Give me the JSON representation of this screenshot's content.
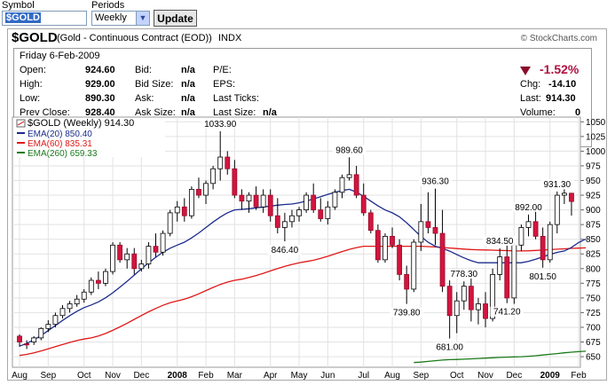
{
  "form": {
    "symbol_label": "Symbol",
    "symbol_value": "$GOLD",
    "periods_label": "Periods",
    "periods_value": "Weekly",
    "update_label": "Update"
  },
  "header": {
    "title": "$GOLD",
    "subtitle": "(Gold - Continuous Contract (EOD))",
    "exchange": "INDX",
    "brand": "© StockCharts.com"
  },
  "info": {
    "date": "Friday  6-Feb-2009",
    "open_label": "Open:",
    "open": "924.60",
    "high_label": "High:",
    "high": "929.00",
    "low_label": "Low:",
    "low": "890.30",
    "prevclose_label": "Prev Close:",
    "prevclose": "928.40",
    "bid_label": "Bid:",
    "bid": "n/a",
    "bidsize_label": "Bid Size:",
    "bidsize": "n/a",
    "ask_label": "Ask:",
    "ask": "n/a",
    "asksize_label": "Ask Size:",
    "asksize": "n/a",
    "pe_label": "P/E:",
    "eps_label": "EPS:",
    "lastticks_label": "Last Ticks:",
    "lastsize_label": "Last Size:",
    "lastsize": "n/a",
    "pct_change": "-1.52%",
    "chg_label": "Chg:",
    "chg": "-14.10",
    "last_label": "Last:",
    "last": "914.30",
    "volume_label": "Volume:",
    "volume": "0"
  },
  "chart_data": {
    "type": "candlestick",
    "title": "$GOLD (Weekly) 914.30",
    "legend": [
      {
        "label": "EMA(20) 850.40",
        "color": "#1c2c8c"
      },
      {
        "label": "EMA(60) 835.31",
        "color": "#e01818"
      },
      {
        "label": "EMA(260) 659.33",
        "color": "#1a7a1a"
      }
    ],
    "y_ticks": [
      650,
      675,
      700,
      725,
      750,
      775,
      800,
      825,
      850,
      875,
      900,
      925,
      950,
      975,
      1000,
      1025,
      1050
    ],
    "ylim": [
      635,
      1055
    ],
    "x_labels": [
      "Aug",
      "Sep",
      "Oct",
      "Nov",
      "Dec",
      "2008",
      "Feb",
      "Mar",
      "Apr",
      "May",
      "Jun",
      "Jul",
      "Aug",
      "Sep",
      "Oct",
      "Nov",
      "Dec",
      "2009",
      "Feb"
    ],
    "x_bold": [
      "2008",
      "2009"
    ],
    "x_label_weeks": [
      0,
      4,
      9,
      13,
      17,
      22,
      26,
      30,
      35,
      39,
      43,
      48,
      52,
      56,
      61,
      65,
      69,
      74,
      78
    ],
    "candles": [
      [
        685,
        688,
        667,
        675
      ],
      [
        672,
        678,
        663,
        670
      ],
      [
        675,
        685,
        670,
        682
      ],
      [
        682,
        700,
        678,
        698
      ],
      [
        698,
        712,
        692,
        705
      ],
      [
        705,
        725,
        700,
        720
      ],
      [
        720,
        738,
        715,
        732
      ],
      [
        732,
        745,
        725,
        740
      ],
      [
        740,
        755,
        735,
        748
      ],
      [
        748,
        765,
        742,
        760
      ],
      [
        760,
        785,
        755,
        780
      ],
      [
        780,
        795,
        765,
        775
      ],
      [
        775,
        800,
        770,
        795
      ],
      [
        795,
        845,
        790,
        840
      ],
      [
        840,
        845,
        810,
        815
      ],
      [
        815,
        835,
        800,
        825
      ],
      [
        825,
        835,
        790,
        800
      ],
      [
        800,
        815,
        795,
        808
      ],
      [
        808,
        845,
        800,
        838
      ],
      [
        838,
        860,
        820,
        828
      ],
      [
        828,
        865,
        822,
        860
      ],
      [
        860,
        900,
        855,
        895
      ],
      [
        895,
        915,
        880,
        905
      ],
      [
        905,
        920,
        880,
        890
      ],
      [
        890,
        940,
        885,
        935
      ],
      [
        935,
        955,
        920,
        925
      ],
      [
        925,
        950,
        910,
        945
      ],
      [
        945,
        975,
        935,
        970
      ],
      [
        970,
        1033.9,
        950,
        990
      ],
      [
        990,
        1000,
        960,
        970
      ],
      [
        970,
        985,
        920,
        925
      ],
      [
        925,
        935,
        900,
        915
      ],
      [
        915,
        930,
        895,
        925
      ],
      [
        925,
        940,
        900,
        905
      ],
      [
        905,
        935,
        895,
        925
      ],
      [
        925,
        935,
        880,
        890
      ],
      [
        890,
        920,
        860,
        870
      ],
      [
        870,
        895,
        846.4,
        880
      ],
      [
        880,
        900,
        870,
        890
      ],
      [
        890,
        905,
        880,
        900
      ],
      [
        900,
        930,
        895,
        925
      ],
      [
        925,
        945,
        895,
        900
      ],
      [
        900,
        920,
        880,
        885
      ],
      [
        885,
        915,
        875,
        905
      ],
      [
        905,
        935,
        900,
        930
      ],
      [
        930,
        960,
        920,
        955
      ],
      [
        955,
        989.6,
        950,
        960
      ],
      [
        960,
        975,
        920,
        925
      ],
      [
        925,
        945,
        890,
        895
      ],
      [
        895,
        900,
        860,
        865
      ],
      [
        865,
        875,
        810,
        815
      ],
      [
        815,
        860,
        810,
        855
      ],
      [
        855,
        870,
        835,
        840
      ],
      [
        840,
        850,
        780,
        790
      ],
      [
        790,
        805,
        739.8,
        765
      ],
      [
        765,
        850,
        760,
        845
      ],
      [
        845,
        910,
        830,
        880
      ],
      [
        880,
        930,
        860,
        870
      ],
      [
        870,
        936.3,
        840,
        860
      ],
      [
        860,
        900,
        760,
        770
      ],
      [
        770,
        780,
        681,
        720
      ],
      [
        720,
        760,
        690,
        745
      ],
      [
        745,
        778.3,
        730,
        770
      ],
      [
        770,
        790,
        710,
        730
      ],
      [
        730,
        750,
        705,
        740
      ],
      [
        740,
        760,
        700,
        715
      ],
      [
        715,
        800,
        710,
        790
      ],
      [
        790,
        834.5,
        780,
        820
      ],
      [
        820,
        840,
        741.2,
        750
      ],
      [
        750,
        845,
        740,
        840
      ],
      [
        840,
        875,
        830,
        870
      ],
      [
        870,
        892,
        855,
        880
      ],
      [
        880,
        900,
        850,
        855
      ],
      [
        855,
        870,
        801.5,
        815
      ],
      [
        815,
        880,
        810,
        875
      ],
      [
        875,
        931.3,
        860,
        925
      ],
      [
        925,
        935,
        910,
        928.4
      ],
      [
        928.4,
        929,
        890.3,
        914.3
      ]
    ],
    "annotations": [
      {
        "text": "1033.90",
        "week": 28,
        "price": 1033.9,
        "pos": "above"
      },
      {
        "text": "989.60",
        "week": 46,
        "price": 989.6,
        "pos": "above"
      },
      {
        "text": "846.40",
        "week": 37,
        "price": 846.4,
        "pos": "below"
      },
      {
        "text": "936.30",
        "week": 58,
        "price": 936.3,
        "pos": "above"
      },
      {
        "text": "739.80",
        "week": 54,
        "price": 739.8,
        "pos": "below"
      },
      {
        "text": "778.30",
        "week": 62,
        "price": 778.3,
        "pos": "above"
      },
      {
        "text": "681.00",
        "week": 60,
        "price": 681,
        "pos": "below"
      },
      {
        "text": "741.20",
        "week": 68,
        "price": 741.2,
        "pos": "below"
      },
      {
        "text": "834.50",
        "week": 67,
        "price": 834.5,
        "pos": "above"
      },
      {
        "text": "892.00",
        "week": 71,
        "price": 892,
        "pos": "above"
      },
      {
        "text": "801.50",
        "week": 73,
        "price": 801.5,
        "pos": "below"
      },
      {
        "text": "931.30",
        "week": 75,
        "price": 931.3,
        "pos": "above"
      }
    ],
    "ema20_anchors": [
      [
        0,
        668
      ],
      [
        10,
        738
      ],
      [
        22,
        840
      ],
      [
        30,
        900
      ],
      [
        38,
        910
      ],
      [
        46,
        935
      ],
      [
        52,
        895
      ],
      [
        58,
        838
      ],
      [
        64,
        810
      ],
      [
        70,
        810
      ],
      [
        76,
        830
      ],
      [
        79,
        850.4
      ]
    ],
    "ema60_anchors": [
      [
        0,
        652
      ],
      [
        10,
        682
      ],
      [
        22,
        745
      ],
      [
        30,
        780
      ],
      [
        40,
        812
      ],
      [
        48,
        838
      ],
      [
        56,
        838
      ],
      [
        64,
        832
      ],
      [
        70,
        830
      ],
      [
        79,
        835.3
      ]
    ],
    "ema260_anchors": [
      [
        55,
        640
      ],
      [
        60,
        645
      ],
      [
        70,
        650
      ],
      [
        79,
        659.3
      ]
    ]
  }
}
